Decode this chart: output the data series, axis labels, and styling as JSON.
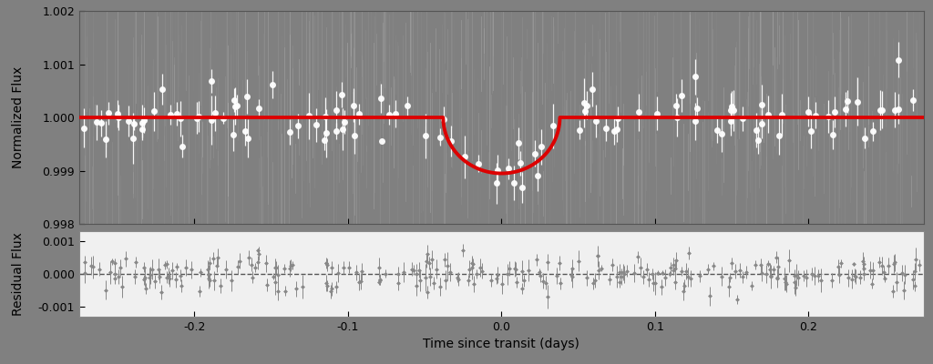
{
  "background_color_main": "#808080",
  "background_color_residual": "#f0f0f0",
  "fig_background": "#808080",
  "xlim": [
    -0.275,
    0.275
  ],
  "ylim_main": [
    0.998,
    1.002
  ],
  "ylim_residual": [
    -0.0013,
    0.0013
  ],
  "yticks_main": [
    0.998,
    0.999,
    1.0,
    1.001,
    1.002
  ],
  "yticks_residual": [
    -0.001,
    0.0,
    0.001
  ],
  "xticks": [
    -0.2,
    -0.1,
    0.0,
    0.1,
    0.2
  ],
  "xlabel": "Time since transit (days)",
  "ylabel_main": "Normalized Flux",
  "ylabel_residual": "Residual Flux",
  "transit_depth": 0.00105,
  "transit_half_duration": 0.038,
  "data_color_main": "white",
  "data_color_residual": "#888888",
  "model_color": "#dd0000",
  "model_linewidth": 2.8,
  "scatter_main": 0.00028,
  "scatter_residual": 0.00028,
  "errorbar_main": 0.00028,
  "errorbar_residual": 0.00022,
  "marker_size_main": 5,
  "marker_size_residual": 2.5,
  "dashed_color": "#555555",
  "panel_ratio": [
    2.5,
    1.0
  ],
  "hspace": 0.05,
  "n_data_main": 120,
  "n_data_residual": 280,
  "seed_main": 42,
  "seed_residual": 99,
  "seed_streaks": 7
}
